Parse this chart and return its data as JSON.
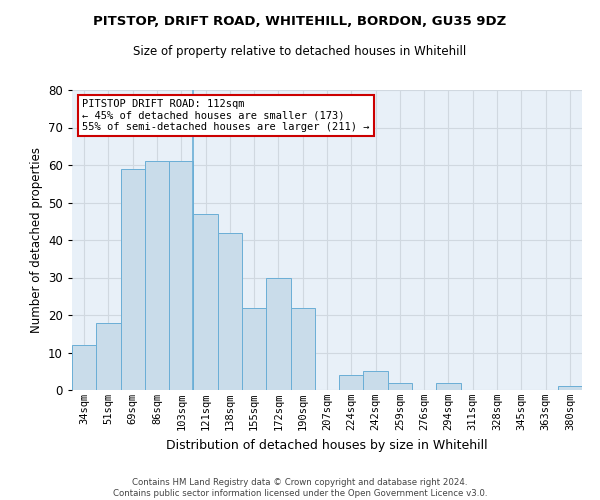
{
  "title_line1": "PITSTOP, DRIFT ROAD, WHITEHILL, BORDON, GU35 9DZ",
  "title_line2": "Size of property relative to detached houses in Whitehill",
  "xlabel": "Distribution of detached houses by size in Whitehill",
  "ylabel": "Number of detached properties",
  "categories": [
    "34sqm",
    "51sqm",
    "69sqm",
    "86sqm",
    "103sqm",
    "121sqm",
    "138sqm",
    "155sqm",
    "172sqm",
    "190sqm",
    "207sqm",
    "224sqm",
    "242sqm",
    "259sqm",
    "276sqm",
    "294sqm",
    "311sqm",
    "328sqm",
    "345sqm",
    "363sqm",
    "380sqm"
  ],
  "values": [
    12,
    18,
    59,
    61,
    61,
    47,
    42,
    22,
    30,
    22,
    0,
    4,
    5,
    2,
    0,
    2,
    0,
    0,
    0,
    0,
    1
  ],
  "bar_color": "#c9dcea",
  "bar_edge_color": "#6aaed6",
  "annotation_box_text": "PITSTOP DRIFT ROAD: 112sqm\n← 45% of detached houses are smaller (173)\n55% of semi-detached houses are larger (211) →",
  "annotation_box_edge_color": "#cc0000",
  "annotation_box_face_color": "#ffffff",
  "property_bar_index": 4,
  "ylim": [
    0,
    80
  ],
  "yticks": [
    0,
    10,
    20,
    30,
    40,
    50,
    60,
    70,
    80
  ],
  "grid_color": "#d0d8e0",
  "background_color": "#e8f0f8",
  "footnote": "Contains HM Land Registry data © Crown copyright and database right 2024.\nContains public sector information licensed under the Open Government Licence v3.0."
}
